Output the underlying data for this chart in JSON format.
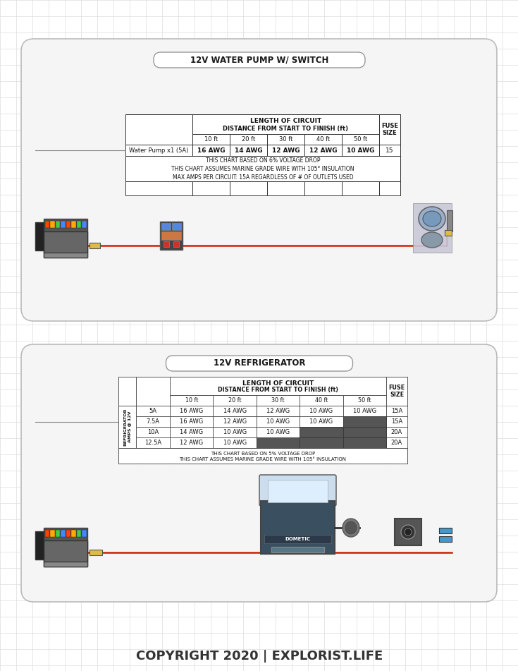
{
  "bg_color": "#ffffff",
  "panel_bg": "#f8f8f8",
  "panel_border": "#bbbbbb",
  "grid_color": "#dddddd",
  "title1": "12V WATER PUMP W/ SWITCH",
  "title2": "12V REFRIGERATOR",
  "table1": {
    "header1": "LENGTH OF CIRCUIT",
    "header2": "DISTANCE FROM START TO FINISH (ft)",
    "col_headers": [
      "10 ft",
      "20 ft",
      "30 ft",
      "40 ft",
      "50 ft"
    ],
    "fuse_label": "FUSE\nSIZE",
    "row_label": "Water Pump x1 (5A)",
    "row_values": [
      "16 AWG",
      "14 AWG",
      "12 AWG",
      "12 AWG",
      "10 AWG"
    ],
    "fuse_value": "15",
    "note1": "THIS CHART BASED ON 6% VOLTAGE DROP",
    "note2": "THIS CHART ASSUMES MARINE GRADE WIRE WITH 105° INSULATION",
    "note3": "MAX AMPS PER CIRCUIT: 15A REGARDLESS OF # OF OUTLETS USED"
  },
  "table2": {
    "header1": "LENGTH OF CIRCUIT",
    "header2": "DISTANCE FROM START TO FINISH (ft)",
    "col_headers": [
      "10 ft",
      "20 ft",
      "30 ft",
      "40 ft",
      "50 ft"
    ],
    "fuse_label": "FUSE\nSIZE",
    "row_label_rotated": "REFRIGERATOR\nAMPS @ 12V",
    "rows": [
      {
        "label": "5A",
        "values": [
          "16 AWG",
          "14 AWG",
          "12 AWG",
          "10 AWG",
          "10 AWG"
        ],
        "dark": [
          false,
          false,
          false,
          false,
          false
        ],
        "fuse": "15A"
      },
      {
        "label": "7.5A",
        "values": [
          "16 AWG",
          "12 AWG",
          "10 AWG",
          "10 AWG",
          ""
        ],
        "dark": [
          false,
          false,
          false,
          false,
          true
        ],
        "fuse": "15A"
      },
      {
        "label": "10A",
        "values": [
          "14 AWG",
          "10 AWG",
          "10 AWG",
          "",
          ""
        ],
        "dark": [
          false,
          false,
          false,
          true,
          true
        ],
        "fuse": "20A"
      },
      {
        "label": "12.5A",
        "values": [
          "12 AWG",
          "10 AWG",
          "",
          "",
          ""
        ],
        "dark": [
          false,
          false,
          true,
          true,
          true
        ],
        "fuse": "20A"
      }
    ],
    "note1": "THIS CHART BASED ON 5% VOLTAGE DROP",
    "note2": "THIS CHART ASSUMES MARINE GRADE WIRE WITH 105° INSULATION"
  },
  "copyright": "COPYRIGHT 2020 | EXPLORIST.LIFE",
  "wire_red": "#cc2200",
  "wire_black": "#111111"
}
